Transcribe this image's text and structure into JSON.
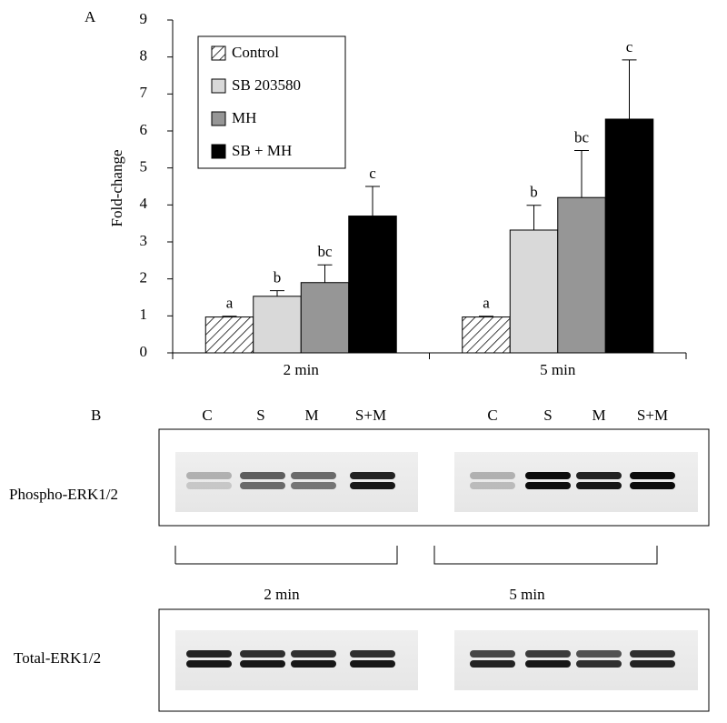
{
  "panel_a": "A",
  "chart_data": {
    "type": "bar",
    "y_label": "Fold-change",
    "categories": [
      "2 min",
      "5 min"
    ],
    "ylim": [
      0,
      9
    ],
    "yticks": [
      0,
      1,
      2,
      3,
      4,
      5,
      6,
      7,
      8,
      9
    ],
    "series": [
      {
        "name": "Control",
        "color": "#ffffff",
        "hatch": true,
        "values": [
          0.97,
          0.97
        ],
        "errors": [
          0.02,
          0.02
        ],
        "letters": [
          "a",
          "a"
        ]
      },
      {
        "name": "SB 203580",
        "color": "#d9d9d9",
        "values": [
          1.53,
          3.32
        ],
        "errors": [
          0.15,
          0.67
        ],
        "letters": [
          "b",
          "b"
        ]
      },
      {
        "name": "MH",
        "color": "#969696",
        "values": [
          1.9,
          4.2
        ],
        "errors": [
          0.48,
          1.27
        ],
        "letters": [
          "bc",
          "bc"
        ]
      },
      {
        "name": "SB + MH",
        "color": "#000000",
        "values": [
          3.7,
          6.32
        ],
        "errors": [
          0.8,
          1.6
        ],
        "letters": [
          "c",
          "c"
        ]
      }
    ]
  },
  "panel_b": {
    "label": "B",
    "lanes": [
      "C",
      "S",
      "M",
      "S+M",
      "C",
      "S",
      "M",
      "S+M"
    ],
    "phospho_label": "Phospho-ERK1/2",
    "total_label": "Total-ERK1/2",
    "time_labels": [
      "2 min",
      "5 min"
    ]
  }
}
